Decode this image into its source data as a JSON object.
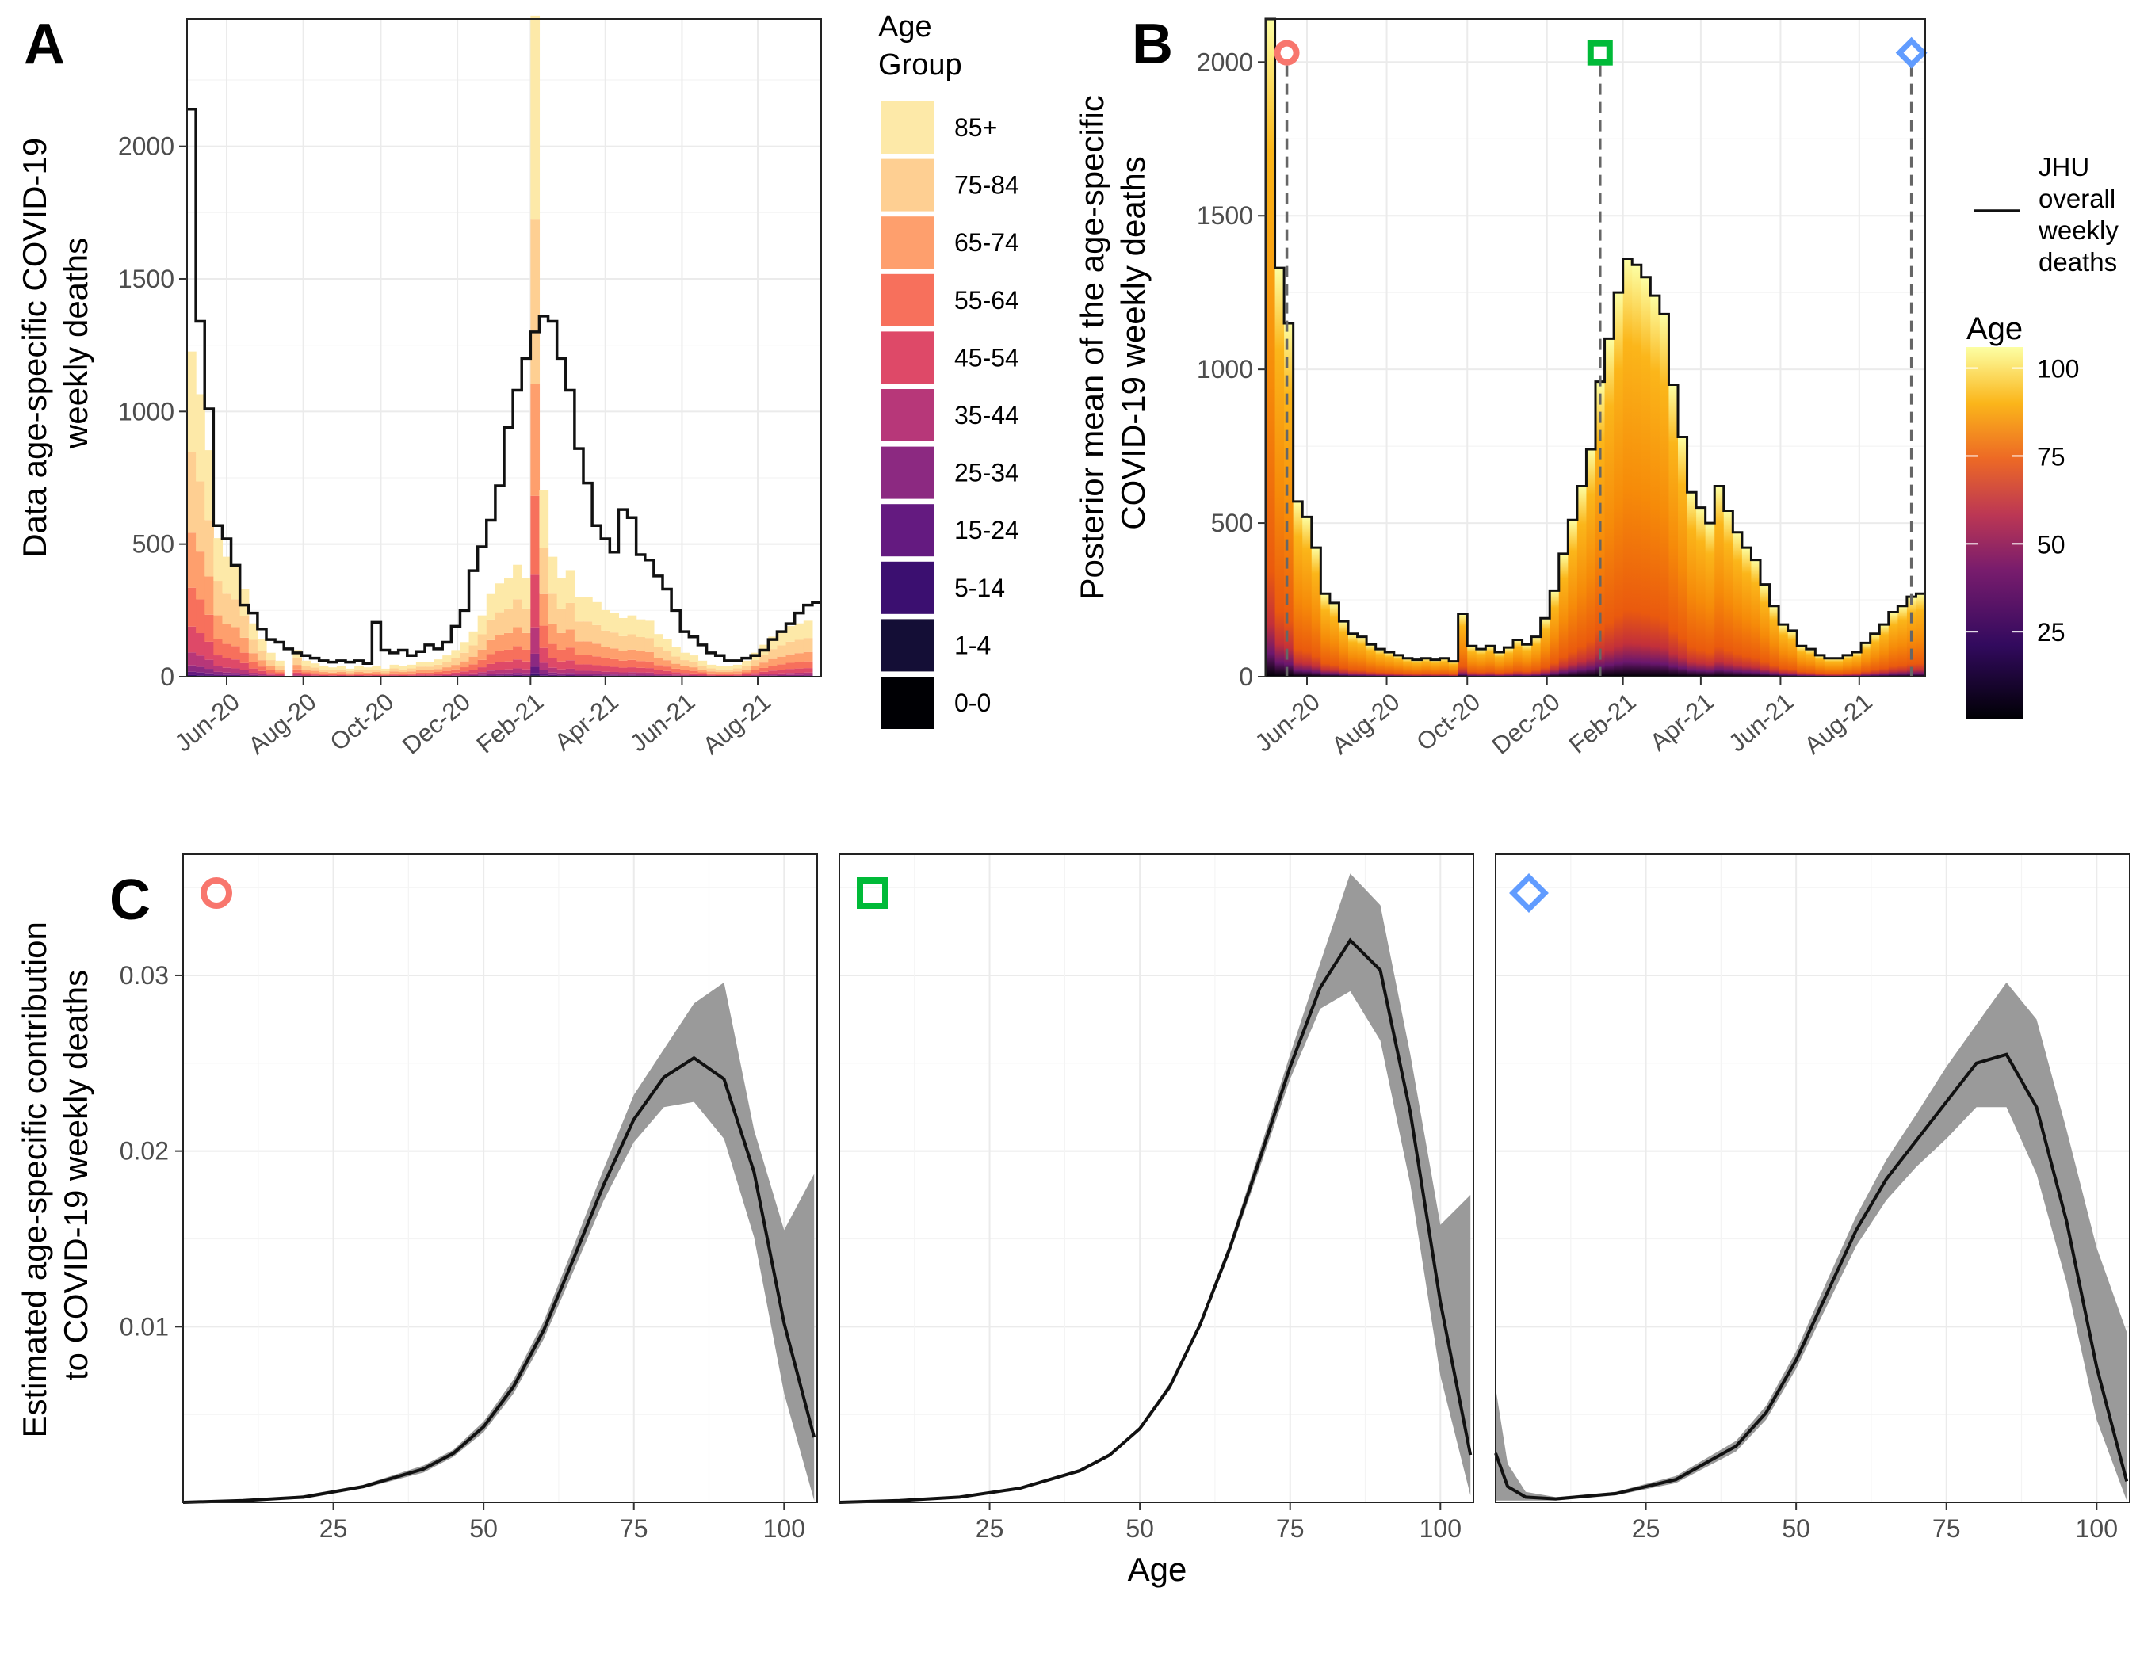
{
  "figure": {
    "panel_labels": [
      "A",
      "B",
      "C"
    ],
    "colors": {
      "age_group": [
        "#000004",
        "#140e36",
        "#3b0f70",
        "#641a80",
        "#8c2981",
        "#b73779",
        "#de4968",
        "#f7705c",
        "#fe9f6d",
        "#fecf92",
        "#fde9a8"
      ],
      "point_a": "#f8766d",
      "point_b": "#00ba38",
      "point_c": "#619cff",
      "ribbon": "#9a9a9a",
      "line": "#111111",
      "grid": "#ebebeb"
    }
  },
  "chart_data": [
    {
      "id": "A",
      "type": "bar",
      "stacked": true,
      "ylabel": "Data age-specific COVID-19\nweekly deaths",
      "xlabel": "",
      "ylim": [
        0,
        2480
      ],
      "yticks": [
        0,
        500,
        1000,
        1500,
        2000
      ],
      "xticks": [
        "Jun-20",
        "Aug-20",
        "Oct-20",
        "Dec-20",
        "Feb-21",
        "Apr-21",
        "Jun-21",
        "Aug-21"
      ],
      "xtick_weeks": [
        4.5,
        13.2,
        22.0,
        30.7,
        39.0,
        47.5,
        56.2,
        64.8
      ],
      "legend_title": "Age\nGroup",
      "legend_entries": [
        "85+",
        "75-84",
        "65-74",
        "55-64",
        "45-54",
        "35-44",
        "25-34",
        "15-24",
        "5-14",
        "1-4",
        "0-0"
      ],
      "age_groups": [
        "0-0",
        "1-4",
        "5-14",
        "15-24",
        "25-34",
        "35-44",
        "45-54",
        "55-64",
        "65-74",
        "75-84",
        "85+"
      ],
      "totals": [
        1220,
        1060,
        850,
        520,
        450,
        420,
        330,
        200,
        140,
        90,
        60,
        0,
        100,
        60,
        50,
        40,
        35,
        40,
        30,
        40,
        35,
        40,
        30,
        45,
        40,
        45,
        55,
        55,
        65,
        80,
        100,
        130,
        170,
        230,
        310,
        350,
        370,
        420,
        370,
        2480,
        700,
        450,
        370,
        400,
        300,
        300,
        280,
        250,
        240,
        220,
        230,
        215,
        210,
        160,
        140,
        110,
        90,
        80,
        60,
        45,
        40,
        40,
        45,
        60,
        90,
        120,
        150,
        170,
        190,
        200,
        210
      ],
      "shares": [
        0.001,
        0.001,
        0.003,
        0.01,
        0.02,
        0.04,
        0.08,
        0.12,
        0.17,
        0.25,
        0.31
      ],
      "series": [
        {
          "name": "JHU overall weekly deaths",
          "values": [
            2140,
            1340,
            1010,
            570,
            520,
            420,
            270,
            240,
            180,
            140,
            130,
            105,
            90,
            80,
            70,
            60,
            55,
            60,
            55,
            60,
            50,
            205,
            100,
            90,
            100,
            80,
            95,
            120,
            105,
            130,
            190,
            250,
            400,
            490,
            590,
            720,
            940,
            1080,
            1200,
            1300,
            1360,
            1340,
            1200,
            1080,
            860,
            730,
            570,
            520,
            470,
            630,
            600,
            460,
            440,
            380,
            330,
            250,
            170,
            150,
            120,
            90,
            80,
            60,
            60,
            70,
            80,
            100,
            140,
            170,
            200,
            240,
            270,
            280
          ]
        }
      ]
    },
    {
      "id": "B",
      "type": "bar",
      "ylabel": "Posterior mean of the age-specific\nCOVID-19 weekly deaths",
      "xlabel": "",
      "ylim": [
        0,
        2140
      ],
      "yticks": [
        0,
        500,
        1000,
        1500,
        2000
      ],
      "xticks": [
        "Jun-20",
        "Aug-20",
        "Oct-20",
        "Dec-20",
        "Feb-21",
        "Apr-21",
        "Jun-21",
        "Aug-21"
      ],
      "xtick_weeks": [
        4.5,
        13.2,
        22.0,
        30.7,
        39.0,
        47.5,
        56.2,
        64.8
      ],
      "legend_line": "JHU\noverall\nweekly\ndeaths",
      "colorbar_title": "Age",
      "colorbar_ticks": [
        25,
        50,
        75,
        100
      ],
      "colorbar_range": [
        0,
        106
      ],
      "marker_weeks": [
        2.3,
        36.5,
        70.5
      ],
      "marker_value": 2030,
      "marker_shapes": [
        "circle",
        "square",
        "diamond"
      ],
      "series": [
        {
          "name": "Posterior mean weekly deaths",
          "values": [
            2140,
            1330,
            1150,
            570,
            520,
            420,
            270,
            240,
            180,
            140,
            130,
            105,
            90,
            80,
            70,
            60,
            55,
            60,
            55,
            60,
            50,
            205,
            100,
            90,
            100,
            80,
            95,
            120,
            105,
            130,
            190,
            280,
            400,
            510,
            620,
            740,
            960,
            1100,
            1250,
            1360,
            1340,
            1300,
            1240,
            1180,
            950,
            780,
            600,
            550,
            500,
            620,
            540,
            470,
            420,
            380,
            300,
            230,
            170,
            150,
            100,
            90,
            70,
            60,
            60,
            70,
            80,
            110,
            140,
            170,
            210,
            230,
            260,
            270
          ]
        }
      ]
    },
    {
      "id": "C",
      "type": "line",
      "xlabel": "Age",
      "ylabel": "Estimated age-specific contribution\nto COVID-19 weekly deaths",
      "xlim": [
        0,
        105.5
      ],
      "ylim": [
        0,
        0.0369
      ],
      "xticks": [
        25,
        50,
        75,
        100
      ],
      "yticks": [
        0.01,
        0.02,
        0.03
      ],
      "ytick_labels": [
        "0.01",
        "0.02",
        "0.03"
      ],
      "facets": [
        {
          "marker": "circle",
          "x": [
            0,
            10,
            20,
            30,
            40,
            45,
            50,
            55,
            60,
            65,
            70,
            75,
            80,
            85,
            90,
            95,
            100,
            105
          ],
          "mean": [
            0,
            0.0001,
            0.0003,
            0.0009,
            0.0019,
            0.0028,
            0.0043,
            0.0066,
            0.0098,
            0.0139,
            0.0181,
            0.0218,
            0.0242,
            0.0253,
            0.0241,
            0.0188,
            0.0102,
            0.0037
          ],
          "lower": [
            0,
            0.0001,
            0.0002,
            0.0008,
            0.0017,
            0.0026,
            0.004,
            0.0062,
            0.0093,
            0.0132,
            0.0172,
            0.0205,
            0.0225,
            0.0228,
            0.0207,
            0.0151,
            0.0062,
            0.0001
          ],
          "upper": [
            0,
            0.0001,
            0.0004,
            0.001,
            0.0021,
            0.003,
            0.0046,
            0.007,
            0.0103,
            0.0146,
            0.019,
            0.0232,
            0.0258,
            0.0284,
            0.0296,
            0.0212,
            0.0155,
            0.0187
          ]
        },
        {
          "marker": "square",
          "x": [
            0,
            10,
            20,
            30,
            40,
            45,
            50,
            55,
            60,
            65,
            70,
            75,
            80,
            85,
            90,
            95,
            100,
            105
          ],
          "mean": [
            0,
            0.0001,
            0.0003,
            0.0008,
            0.0018,
            0.0027,
            0.0042,
            0.0066,
            0.0101,
            0.0145,
            0.0196,
            0.0248,
            0.0293,
            0.032,
            0.0303,
            0.0222,
            0.0114,
            0.0027
          ],
          "lower": [
            0,
            0.0001,
            0.0003,
            0.0008,
            0.0017,
            0.0026,
            0.0041,
            0.0064,
            0.0099,
            0.0142,
            0.0191,
            0.0241,
            0.0281,
            0.0291,
            0.0263,
            0.0181,
            0.0072,
            0.0004
          ],
          "upper": [
            0,
            0.0001,
            0.0003,
            0.0008,
            0.0019,
            0.0028,
            0.0043,
            0.0068,
            0.0103,
            0.0148,
            0.0201,
            0.0255,
            0.0307,
            0.0358,
            0.034,
            0.0255,
            0.0158,
            0.0175
          ]
        },
        {
          "marker": "diamond",
          "x": [
            0,
            2,
            5,
            10,
            20,
            30,
            40,
            45,
            50,
            55,
            60,
            65,
            70,
            75,
            80,
            85,
            90,
            95,
            100,
            105
          ],
          "mean": [
            0.0028,
            0.0009,
            0.0003,
            0.0002,
            0.0005,
            0.0013,
            0.0032,
            0.0051,
            0.0081,
            0.0118,
            0.0155,
            0.0184,
            0.0206,
            0.0228,
            0.025,
            0.0255,
            0.0225,
            0.016,
            0.0077,
            0.0012
          ],
          "lower": [
            0.0001,
            0.0001,
            0.0001,
            0.0001,
            0.0004,
            0.0011,
            0.0029,
            0.0047,
            0.0076,
            0.0111,
            0.0146,
            0.0172,
            0.0191,
            0.0207,
            0.0225,
            0.0225,
            0.0187,
            0.0125,
            0.0047,
            0.0001
          ],
          "upper": [
            0.0065,
            0.0022,
            0.0006,
            0.0003,
            0.0006,
            0.0015,
            0.0035,
            0.0055,
            0.0086,
            0.0125,
            0.0163,
            0.0195,
            0.0221,
            0.0248,
            0.0272,
            0.0296,
            0.0275,
            0.0212,
            0.0145,
            0.0097
          ]
        }
      ]
    }
  ]
}
